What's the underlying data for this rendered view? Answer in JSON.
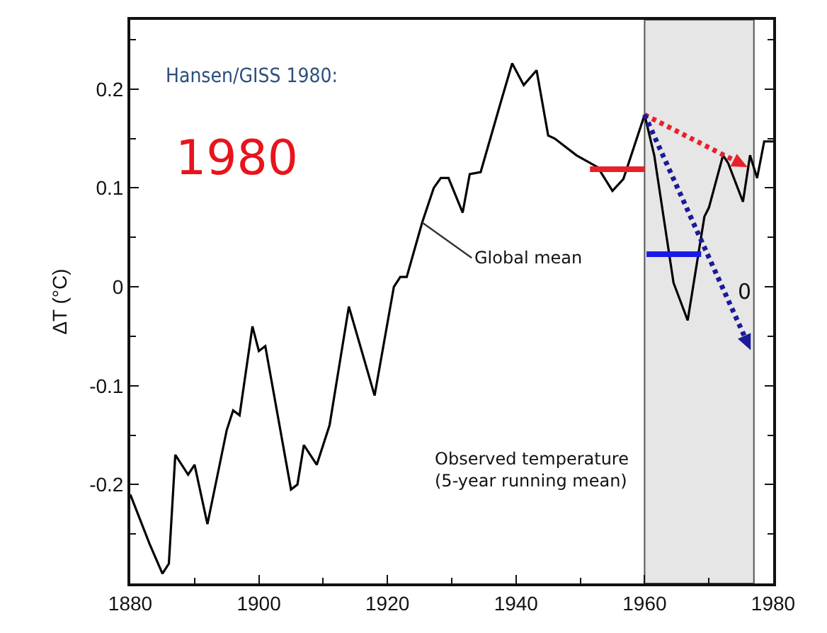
{
  "chart_data": {
    "type": "line",
    "ylabel": "ΔT (°C)",
    "xlim": [
      1880,
      1980
    ],
    "xticks": [
      1880,
      1900,
      1920,
      1940,
      1960,
      1980
    ],
    "ylim": [
      -0.3,
      0.27
    ],
    "yticks": [
      -0.2,
      -0.1,
      0,
      0.1,
      0.2
    ],
    "grid": false,
    "marker": "none",
    "series": [
      {
        "color": "#000000",
        "line_style": "solid",
        "x": [
          1880,
          1883,
          1885,
          1886,
          1887,
          1889,
          1890,
          1892,
          1895,
          1896,
          1897,
          1899,
          1900,
          1901,
          1905,
          1906,
          1907,
          1909,
          1911,
          1914,
          1918,
          1921,
          1922,
          1923,
          1925.4,
          1927.2,
          1928.3,
          1929.5,
          1931.7,
          1932.8,
          1934.5,
          1937.6,
          1939.4,
          1941.2,
          1943.2,
          1945,
          1946,
          1949.4,
          1952.7,
          1955,
          1956.7,
          1960,
          1961.5,
          1964.5,
          1966.7,
          1969.3,
          1970,
          1972.2,
          1973,
          1975.3,
          1976.4,
          1977.5,
          1978.6,
          1980
        ],
        "values": [
          -0.21,
          -0.26,
          -0.29,
          -0.28,
          -0.17,
          -0.19,
          -0.18,
          -0.24,
          -0.145,
          -0.125,
          -0.13,
          -0.04,
          -0.065,
          -0.06,
          -0.205,
          -0.2,
          -0.16,
          -0.18,
          -0.14,
          -0.02,
          -0.11,
          0.0,
          0.01,
          0.01,
          0.065,
          0.1,
          0.11,
          0.11,
          0.075,
          0.114,
          0.116,
          0.186,
          0.226,
          0.204,
          0.219,
          0.153,
          0.15,
          0.133,
          0.121,
          0.097,
          0.109,
          0.174,
          0.133,
          0.004,
          -0.034,
          0.071,
          0.08,
          0.133,
          0.125,
          0.086,
          0.133,
          0.11,
          0.147,
          0.147
        ]
      },
      {
        "color": "#e8202a",
        "line_style": "solid",
        "x": [
          1951.5,
          1960
        ],
        "values": [
          0.119,
          0.119
        ]
      },
      {
        "color": "#1a1ae6",
        "line_style": "solid",
        "x": [
          1960.3,
          1968.8
        ],
        "values": [
          0.033,
          0.033
        ]
      }
    ],
    "bands": [
      {
        "axis": "x",
        "from": 1960,
        "to": 1977,
        "color": "#e6e6e6"
      }
    ],
    "annotations": [
      "Hansen/GISS 1980:",
      "1980",
      {
        "text": "Global mean",
        "x": 1925.4,
        "y": 0.065
      },
      "0",
      "Observed temperature\n(5-year running mean)"
    ]
  }
}
